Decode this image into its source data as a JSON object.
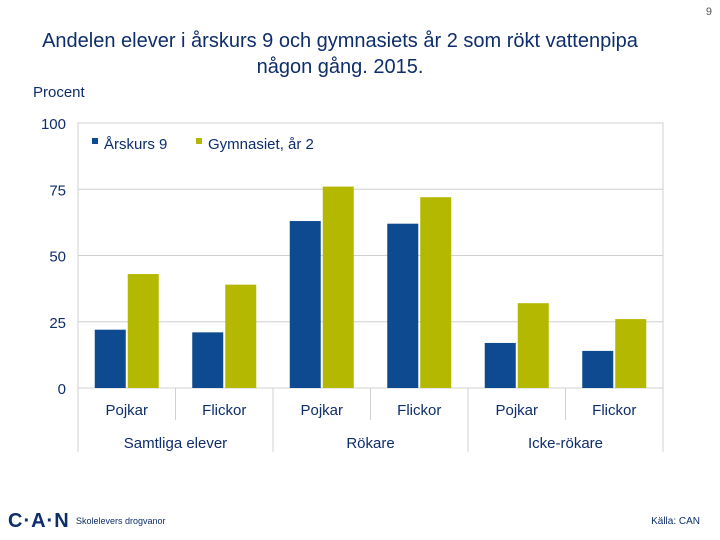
{
  "slide_number": "9",
  "footer": {
    "logo": "C·A·N",
    "subtitle": "Skolelevers drogvanor",
    "source": "Källa: CAN"
  },
  "colors": {
    "series1": "#0d4a8f",
    "series2": "#b5b800",
    "text": "#0d2d6b",
    "grid": "#d0d0d0"
  },
  "chart_data": {
    "type": "bar",
    "title": "Andelen elever i årskurs 9 och gymnasiets år 2 som rökt vattenpipa någon gång. 2015.",
    "ylabel": "Procent",
    "ylim": [
      0,
      100
    ],
    "yticks": [
      0,
      25,
      50,
      75,
      100
    ],
    "grid": true,
    "legend_position": "top-left",
    "categories": [
      "Pojkar",
      "Flickor",
      "Pojkar",
      "Flickor",
      "Pojkar",
      "Flickor"
    ],
    "groups": [
      "Samtliga elever",
      "Rökare",
      "Icke-rökare"
    ],
    "series": [
      {
        "name": "Årskurs 9",
        "values": [
          22,
          21,
          63,
          62,
          17,
          14
        ]
      },
      {
        "name": "Gymnasiet, år 2",
        "values": [
          43,
          39,
          76,
          72,
          32,
          26
        ]
      }
    ]
  }
}
